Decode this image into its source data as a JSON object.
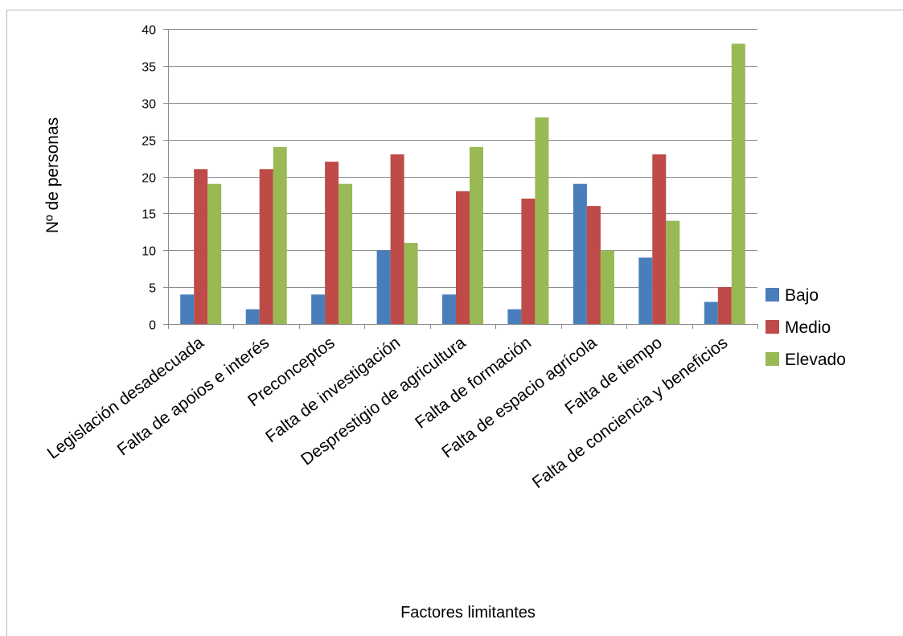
{
  "chart_data": {
    "type": "bar",
    "title": "",
    "xlabel": "Factores limitantes",
    "ylabel": "Nº  de personas",
    "ylim": [
      0,
      40
    ],
    "yticks": [
      0,
      5,
      10,
      15,
      20,
      25,
      30,
      35,
      40
    ],
    "grid": true,
    "legend_position": "right",
    "categories": [
      "Legislación desadecuada",
      "Falta de apoios e interés",
      "Preconceptos",
      "Falta de investigación",
      "Desprestigio de agricultura",
      "Falta de formación",
      "Falta de espacio agrícola",
      "Falta de tiempo",
      "Falta de conciencia y beneficios"
    ],
    "series": [
      {
        "name": "Bajo",
        "color": "#4a7ebb",
        "values": [
          4,
          2,
          4,
          10,
          4,
          2,
          19,
          9,
          3
        ]
      },
      {
        "name": "Medio",
        "color": "#be4b48",
        "values": [
          21,
          21,
          22,
          23,
          18,
          17,
          16,
          23,
          5
        ]
      },
      {
        "name": "Elevado",
        "color": "#98b954",
        "values": [
          19,
          24,
          19,
          11,
          24,
          28,
          10,
          14,
          38
        ]
      }
    ]
  }
}
